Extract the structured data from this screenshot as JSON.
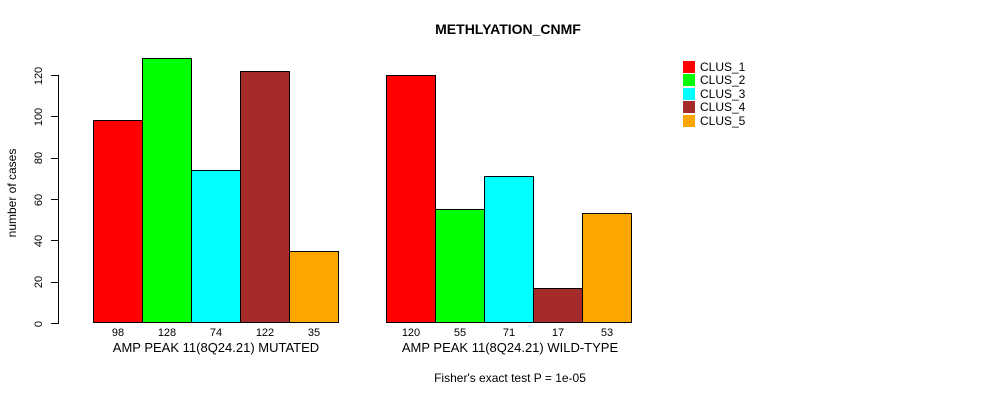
{
  "chart_data": {
    "type": "bar",
    "title": "METHLYATION_CNMF",
    "ylabel": "number of cases",
    "xlabel": "",
    "yticks": [
      0,
      20,
      40,
      60,
      80,
      100,
      120
    ],
    "ylim": [
      0,
      128
    ],
    "grid": false,
    "bar_borders": "#000000",
    "legend_position": "right",
    "series": [
      {
        "name": "CLUS_1",
        "color": "#FF0000"
      },
      {
        "name": "CLUS_2",
        "color": "#00FF00"
      },
      {
        "name": "CLUS_3",
        "color": "#00FFFF"
      },
      {
        "name": "CLUS_4",
        "color": "#A52A2A"
      },
      {
        "name": "CLUS_5",
        "color": "#FFA500"
      }
    ],
    "groups": [
      {
        "label": "AMP PEAK 11(8Q24.21) MUTATED",
        "values": [
          98,
          128,
          74,
          122,
          35
        ]
      },
      {
        "label": "AMP PEAK 11(8Q24.21) WILD-TYPE",
        "values": [
          120,
          55,
          71,
          17,
          53
        ]
      }
    ],
    "bar_value_labels_shown": true,
    "annotation": "Fisher's exact test P = 1e-05"
  }
}
